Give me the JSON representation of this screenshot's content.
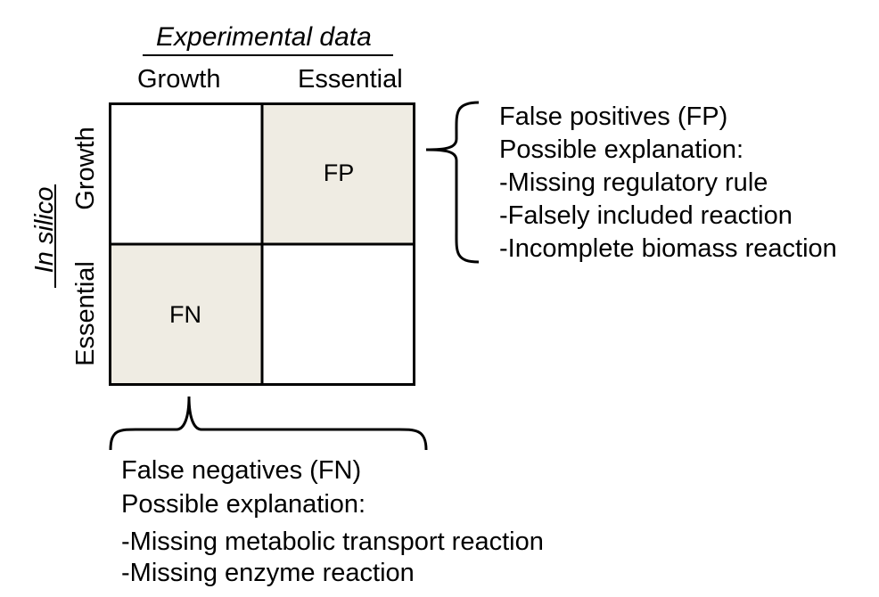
{
  "header": {
    "title": "Experimental data",
    "columns": [
      "Growth",
      "Essential"
    ]
  },
  "side": {
    "title": "In silico",
    "rows": [
      "Growth",
      "Essential"
    ]
  },
  "matrix": {
    "cells": [
      "",
      "FP",
      "FN",
      ""
    ],
    "highlight_color": "#efece3",
    "border_color": "#000000"
  },
  "false_positives": {
    "lines": [
      "False positives (FP)",
      "Possible explanation:",
      "-Missing regulatory rule",
      "-Falsely included reaction",
      "-Incomplete biomass reaction"
    ]
  },
  "false_negatives": {
    "lines": [
      "False negatives (FN)",
      "Possible explanation:",
      "-Missing metabolic transport reaction",
      "-Missing enzyme reaction"
    ]
  }
}
